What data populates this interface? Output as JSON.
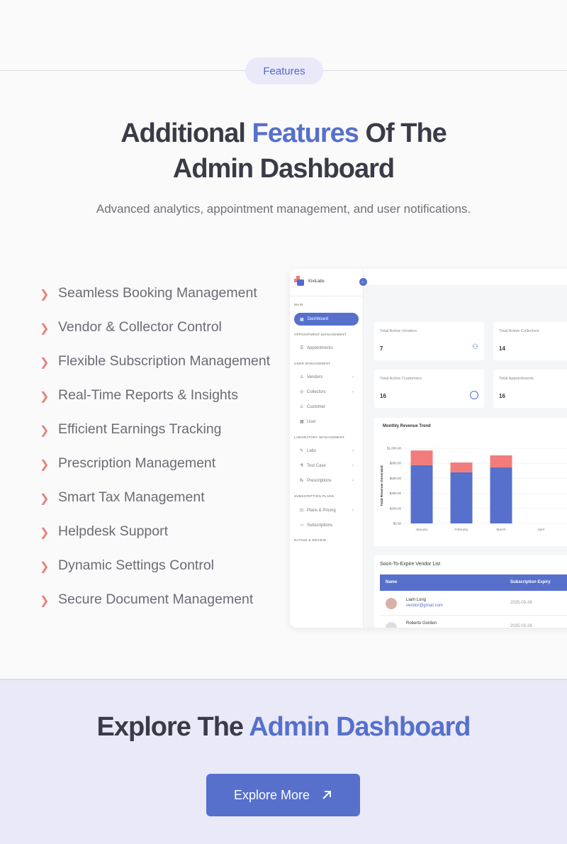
{
  "hero": {
    "pill": "Features",
    "title_a": "Additional ",
    "title_accent": "Features",
    "title_b": " Of The",
    "title_c": "Admin Dashboard",
    "subtitle": "Advanced analytics, appointment management, and user notifications."
  },
  "features": [
    "Seamless Booking Management",
    "Vendor & Collector Control",
    "Flexible Subscription Management",
    "Real-Time Reports & Insights",
    "Efficient Earnings Tracking",
    "Prescription Management",
    "Smart Tax Management",
    "Helpdesk Support",
    "Dynamic Settings Control",
    "Secure Document Management"
  ],
  "dashboard": {
    "brand": "KiviLabs",
    "sidebar": {
      "main": "MAIN",
      "dashboard": "Dashboard",
      "appt_mgmt": "APPOINTMENT MANAGEMENT",
      "appointments": "Appointments",
      "user_mgmt": "USER MANAGEMENT",
      "vendors": "Vendors",
      "collectors": "Collectors",
      "customer": "Customer",
      "user": "User",
      "lab_mgmt": "LABORATORY MANAGEMENT",
      "labs": "Labs",
      "test_case": "Test Case",
      "prescriptions": "Prescriptions",
      "sub_plans": "SUBSCRIPTION PLANS",
      "plans": "Plans & Pricing",
      "subscriptions": "Subscriptions",
      "rating": "RATING & REVIEW"
    },
    "stats": [
      {
        "label": "Total Active Vendors",
        "value": "7"
      },
      {
        "label": "Total Active Collectors",
        "value": "14"
      },
      {
        "label": "Total Active Customers",
        "value": "16"
      },
      {
        "label": "Total Appointments",
        "value": "16"
      }
    ],
    "vendor_list": {
      "title": "Soon-To-Expire Vendor List",
      "col_name": "Name",
      "col_expiry": "Subscription Expiry",
      "rows": [
        {
          "name": "Liam Long",
          "email": "vendor@gmail.com",
          "expiry": "2025-03-26"
        },
        {
          "name": "Roberto Gorden",
          "expiry": "2025-03-26"
        }
      ]
    }
  },
  "chart_data": {
    "type": "bar",
    "stacked": true,
    "title": "Monthly Revenue Trend",
    "ylabel": "Total Revenue Generated",
    "xlabel": "",
    "categories": [
      "January",
      "February",
      "March",
      "April"
    ],
    "yticks": [
      "$0.00",
      "$200.00",
      "$400.00",
      "$600.00",
      "$800.00",
      "$1,000.00"
    ],
    "ylim": [
      0,
      1000
    ],
    "grid": true,
    "series": [
      {
        "values": [
          775,
          680,
          745,
          0
        ],
        "color": "#5670cc"
      },
      {
        "values": [
          195,
          130,
          160,
          0
        ],
        "color": "#f27b7b"
      }
    ]
  },
  "cta": {
    "title_a": "Explore The ",
    "title_accent": "Admin Dashboard",
    "button": "Explore More"
  },
  "colors": {
    "accent": "#5670cc",
    "chevron": "#e7817a"
  }
}
